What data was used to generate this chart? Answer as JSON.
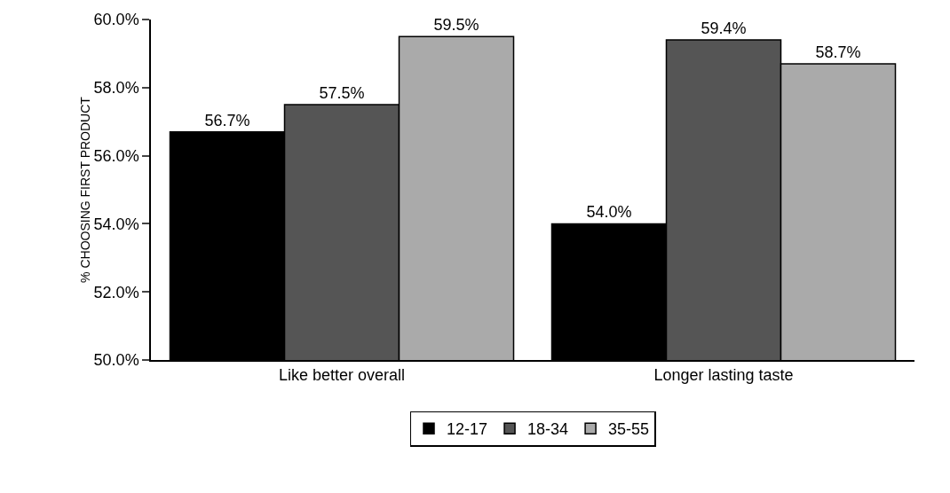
{
  "chart_data": {
    "type": "bar",
    "ylabel": "% CHOOSING FIRST PRODUCT",
    "categories": [
      "Like better overall",
      "Longer lasting taste"
    ],
    "series": [
      {
        "name": "12-17",
        "color": "#000000",
        "values": [
          56.7,
          54.0
        ],
        "value_labels": [
          "56.7%",
          "54.0%"
        ]
      },
      {
        "name": "18-34",
        "color": "#555555",
        "values": [
          57.5,
          59.4
        ],
        "value_labels": [
          "57.5%",
          "59.4%"
        ]
      },
      {
        "name": "35-55",
        "color": "#aaaaaa",
        "values": [
          59.5,
          58.7
        ],
        "value_labels": [
          "59.5%",
          "58.7%"
        ]
      }
    ],
    "ylim": [
      50,
      60
    ],
    "yticks": [
      {
        "value": 50,
        "label": "50.0%"
      },
      {
        "value": 52,
        "label": "52.0%"
      },
      {
        "value": 54,
        "label": "54.0%"
      },
      {
        "value": 56,
        "label": "56.0%"
      },
      {
        "value": 58,
        "label": "58.0%"
      },
      {
        "value": 60,
        "label": "60.0%"
      }
    ],
    "grid": false,
    "legend": "bottom"
  }
}
